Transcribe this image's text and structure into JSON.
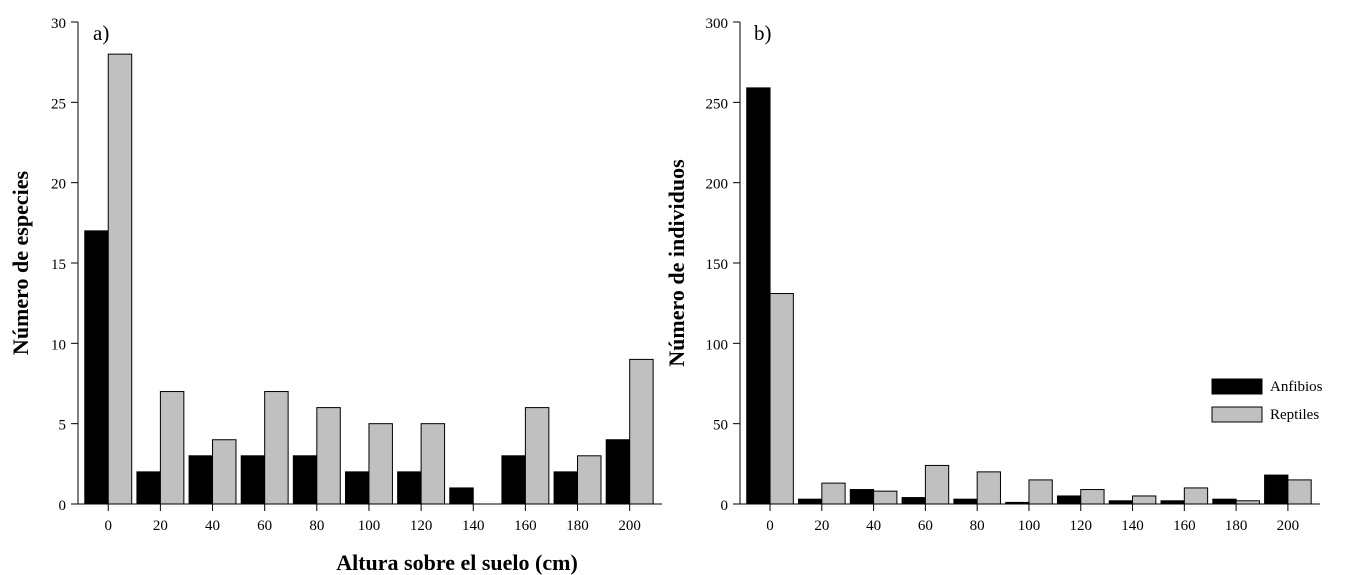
{
  "figure": {
    "xlabel": "Altura sobre el suelo (cm)"
  },
  "chart_data": [
    {
      "type": "bar",
      "panel_label": "a)",
      "title": "",
      "xlabel": "",
      "ylabel": "Número de especies",
      "categories": [
        "0",
        "20",
        "40",
        "60",
        "80",
        "100",
        "120",
        "140",
        "160",
        "180",
        "200"
      ],
      "series": [
        {
          "name": "Anfibios",
          "color": "#000000",
          "values": [
            17,
            2,
            3,
            3,
            3,
            2,
            2,
            1,
            3,
            2,
            4
          ]
        },
        {
          "name": "Reptiles",
          "color": "#c0c0c0",
          "values": [
            28,
            7,
            4,
            7,
            6,
            5,
            5,
            0,
            6,
            3,
            9
          ]
        }
      ],
      "ylim": [
        0,
        30
      ],
      "yticks": [
        "0",
        "5",
        "10",
        "15",
        "20",
        "25",
        "30"
      ],
      "grid": false,
      "legend": false
    },
    {
      "type": "bar",
      "panel_label": "b)",
      "title": "",
      "xlabel": "",
      "ylabel": "Número de individuos",
      "categories": [
        "0",
        "20",
        "40",
        "60",
        "80",
        "100",
        "120",
        "140",
        "160",
        "180",
        "200"
      ],
      "series": [
        {
          "name": "Anfibios",
          "color": "#000000",
          "values": [
            259,
            3,
            9,
            4,
            3,
            1,
            5,
            2,
            2,
            3,
            18
          ]
        },
        {
          "name": "Reptiles",
          "color": "#c0c0c0",
          "values": [
            131,
            13,
            8,
            24,
            20,
            15,
            9,
            5,
            10,
            2,
            15
          ]
        }
      ],
      "ylim": [
        0,
        300
      ],
      "yticks": [
        "0",
        "50",
        "100",
        "150",
        "200",
        "250",
        "300"
      ],
      "grid": false,
      "legend": true,
      "legend_position": "right"
    }
  ]
}
